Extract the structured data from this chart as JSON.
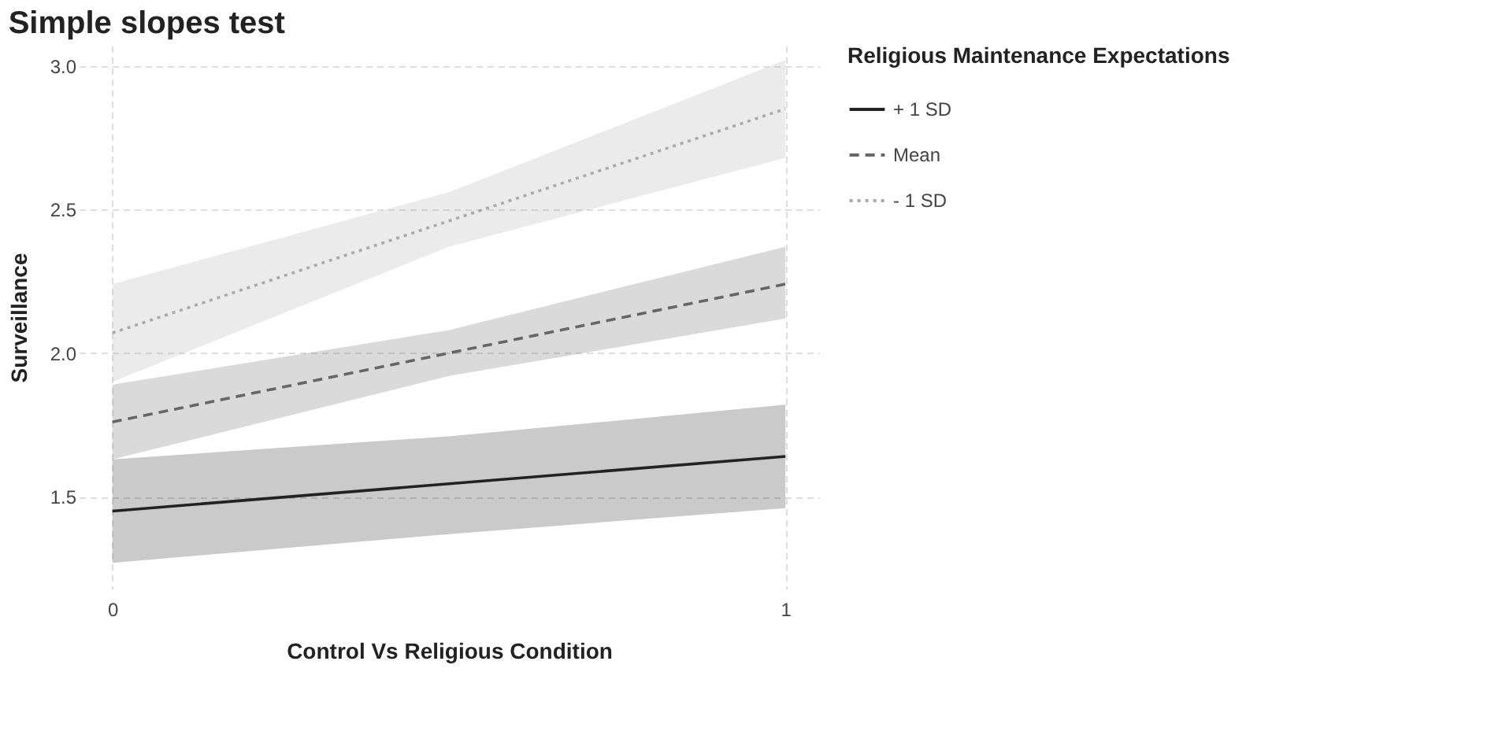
{
  "chart_data": {
    "type": "line",
    "title": "Simple slopes test",
    "xlabel": "Control Vs Religious Condition",
    "ylabel": "Surveillance",
    "legend_title": "Religious Maintenance Expectations",
    "x": [
      0,
      0.5,
      1
    ],
    "xlim": [
      -0.05,
      1.05
    ],
    "xticks": [
      0,
      1
    ],
    "ylim": [
      1.18,
      3.07
    ],
    "yticks": [
      1.5,
      {
        "value": 2,
        "label": "2.0"
      },
      2.5,
      {
        "value": 3,
        "label": "3.0"
      }
    ],
    "grid": true,
    "legend": "right",
    "series": [
      {
        "name": "+ 1 SD",
        "color": "#222222",
        "line_style": "solid",
        "values": [
          1.45,
          1.545,
          1.64
        ],
        "lower": [
          1.27,
          1.37,
          1.46
        ],
        "upper": [
          1.63,
          1.71,
          1.82
        ]
      },
      {
        "name": "Mean",
        "color": "#666666",
        "line_style": "dashed",
        "values": [
          1.76,
          2.0,
          2.24
        ],
        "lower": [
          1.63,
          1.92,
          2.12
        ],
        "upper": [
          1.89,
          2.08,
          2.37
        ]
      },
      {
        "name": "- 1 SD",
        "color": "#aaaaaa",
        "line_style": "dotted",
        "values": [
          2.07,
          2.46,
          2.85
        ],
        "lower": [
          1.9,
          2.37,
          2.68
        ],
        "upper": [
          2.24,
          2.56,
          3.02
        ]
      }
    ]
  }
}
